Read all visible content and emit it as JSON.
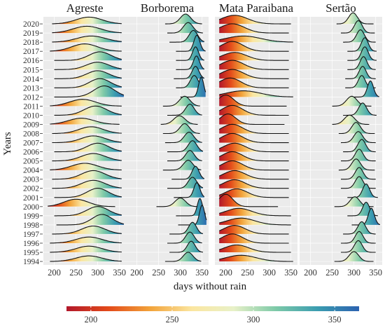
{
  "chart_data": {
    "type": "ridgeline",
    "facets": [
      "Agreste",
      "Borborema",
      "Mata Paraibana",
      "Sertão"
    ],
    "xlabel": "days without rain",
    "ylabel": "Years",
    "xlim": [
      175,
      365
    ],
    "xticks": [
      200,
      250,
      300,
      350
    ],
    "years": [
      2020,
      2019,
      2018,
      2017,
      2016,
      2015,
      2014,
      2013,
      2012,
      2011,
      2010,
      2009,
      2008,
      2007,
      2006,
      2005,
      2004,
      2003,
      2002,
      2001,
      2000,
      1999,
      1998,
      1997,
      1996,
      1995,
      1994
    ],
    "colorbar": {
      "min": 185,
      "max": 365,
      "ticks": [
        200,
        250,
        300,
        350
      ],
      "colors": [
        "#b2182b",
        "#e34a1a",
        "#f2a33a",
        "#fbe6a0",
        "#e8f1c8",
        "#7ecaa8",
        "#3b9db0",
        "#2c62b0"
      ]
    },
    "legend_position": "bottom",
    "grid": true,
    "series": [
      {
        "facet": "Agreste",
        "year": 2020,
        "lo": 195,
        "hi": 355,
        "peak": 280,
        "spread": 30,
        "height": 0.55
      },
      {
        "facet": "Agreste",
        "year": 2019,
        "lo": 195,
        "hi": 355,
        "peak": 275,
        "spread": 32,
        "height": 0.55
      },
      {
        "facet": "Agreste",
        "year": 2018,
        "lo": 195,
        "hi": 355,
        "peak": 285,
        "spread": 33,
        "height": 0.5
      },
      {
        "facet": "Agreste",
        "year": 2017,
        "lo": 190,
        "hi": 355,
        "peak": 270,
        "spread": 30,
        "height": 0.6
      },
      {
        "facet": "Agreste",
        "year": 2016,
        "lo": 200,
        "hi": 355,
        "peak": 305,
        "spread": 25,
        "height": 0.7
      },
      {
        "facet": "Agreste",
        "year": 2015,
        "lo": 200,
        "hi": 355,
        "peak": 300,
        "spread": 26,
        "height": 0.6
      },
      {
        "facet": "Agreste",
        "year": 2014,
        "lo": 200,
        "hi": 355,
        "peak": 300,
        "spread": 25,
        "height": 0.65
      },
      {
        "facet": "Agreste",
        "year": 2013,
        "lo": 200,
        "hi": 355,
        "peak": 305,
        "spread": 24,
        "height": 0.75
      },
      {
        "facet": "Agreste",
        "year": 2012,
        "lo": 200,
        "hi": 360,
        "peak": 315,
        "spread": 24,
        "height": 0.9
      },
      {
        "facet": "Agreste",
        "year": 2011,
        "lo": 190,
        "hi": 355,
        "peak": 265,
        "spread": 30,
        "height": 0.55
      },
      {
        "facet": "Agreste",
        "year": 2010,
        "lo": 200,
        "hi": 355,
        "peak": 295,
        "spread": 26,
        "height": 0.75
      },
      {
        "facet": "Agreste",
        "year": 2009,
        "lo": 190,
        "hi": 350,
        "peak": 262,
        "spread": 30,
        "height": 0.5
      },
      {
        "facet": "Agreste",
        "year": 2008,
        "lo": 195,
        "hi": 355,
        "peak": 285,
        "spread": 28,
        "height": 0.55
      },
      {
        "facet": "Agreste",
        "year": 2007,
        "lo": 195,
        "hi": 355,
        "peak": 290,
        "spread": 28,
        "height": 0.55
      },
      {
        "facet": "Agreste",
        "year": 2006,
        "lo": 200,
        "hi": 355,
        "peak": 300,
        "spread": 25,
        "height": 0.7
      },
      {
        "facet": "Agreste",
        "year": 2005,
        "lo": 195,
        "hi": 355,
        "peak": 290,
        "spread": 28,
        "height": 0.6
      },
      {
        "facet": "Agreste",
        "year": 2004,
        "lo": 190,
        "hi": 355,
        "peak": 270,
        "spread": 30,
        "height": 0.55
      },
      {
        "facet": "Agreste",
        "year": 2003,
        "lo": 195,
        "hi": 355,
        "peak": 290,
        "spread": 27,
        "height": 0.7
      },
      {
        "facet": "Agreste",
        "year": 2002,
        "lo": 195,
        "hi": 355,
        "peak": 290,
        "spread": 27,
        "height": 0.65
      },
      {
        "facet": "Agreste",
        "year": 2001,
        "lo": 200,
        "hi": 355,
        "peak": 300,
        "spread": 24,
        "height": 0.75
      },
      {
        "facet": "Agreste",
        "year": 2000,
        "lo": 185,
        "hi": 340,
        "peak": 250,
        "spread": 28,
        "height": 0.6
      },
      {
        "facet": "Agreste",
        "year": 1999,
        "lo": 200,
        "hi": 355,
        "peak": 300,
        "spread": 25,
        "height": 0.75
      },
      {
        "facet": "Agreste",
        "year": 1998,
        "lo": 205,
        "hi": 360,
        "peak": 310,
        "spread": 23,
        "height": 0.85
      },
      {
        "facet": "Agreste",
        "year": 1997,
        "lo": 195,
        "hi": 355,
        "peak": 290,
        "spread": 27,
        "height": 0.65
      },
      {
        "facet": "Agreste",
        "year": 1996,
        "lo": 190,
        "hi": 355,
        "peak": 280,
        "spread": 30,
        "height": 0.5
      },
      {
        "facet": "Agreste",
        "year": 1995,
        "lo": 190,
        "hi": 355,
        "peak": 280,
        "spread": 30,
        "height": 0.5
      },
      {
        "facet": "Agreste",
        "year": 1994,
        "lo": 190,
        "hi": 355,
        "peak": 280,
        "spread": 30,
        "height": 0.45
      },
      {
        "facet": "Borborema",
        "year": 2020,
        "lo": 265,
        "hi": 350,
        "peak": 312,
        "spread": 12,
        "height": 0.8
      },
      {
        "facet": "Borborema",
        "year": 2019,
        "lo": 270,
        "hi": 352,
        "peak": 318,
        "spread": 11,
        "height": 0.85
      },
      {
        "facet": "Borborema",
        "year": 2018,
        "lo": 275,
        "hi": 355,
        "peak": 330,
        "spread": 10,
        "height": 0.95
      },
      {
        "facet": "Borborema",
        "year": 2017,
        "lo": 290,
        "hi": 358,
        "peak": 338,
        "spread": 7,
        "height": 1.3
      },
      {
        "facet": "Borborema",
        "year": 2016,
        "lo": 290,
        "hi": 355,
        "peak": 335,
        "spread": 7,
        "height": 1.1
      },
      {
        "facet": "Borborema",
        "year": 2015,
        "lo": 290,
        "hi": 355,
        "peak": 337,
        "spread": 7,
        "height": 1.1
      },
      {
        "facet": "Borborema",
        "year": 2014,
        "lo": 285,
        "hi": 355,
        "peak": 335,
        "spread": 8,
        "height": 1.0
      },
      {
        "facet": "Borborema",
        "year": 2013,
        "lo": 290,
        "hi": 355,
        "peak": 332,
        "spread": 9,
        "height": 1.0
      },
      {
        "facet": "Borborema",
        "year": 2012,
        "lo": 300,
        "hi": 358,
        "peak": 348,
        "spread": 6,
        "height": 1.6
      },
      {
        "facet": "Borborema",
        "year": 2011,
        "lo": 260,
        "hi": 345,
        "peak": 310,
        "spread": 12,
        "height": 0.8
      },
      {
        "facet": "Borborema",
        "year": 2010,
        "lo": 270,
        "hi": 350,
        "peak": 322,
        "spread": 10,
        "height": 0.9
      },
      {
        "facet": "Borborema",
        "year": 2009,
        "lo": 255,
        "hi": 340,
        "peak": 298,
        "spread": 13,
        "height": 0.7
      },
      {
        "facet": "Borborema",
        "year": 2008,
        "lo": 260,
        "hi": 345,
        "peak": 310,
        "spread": 11,
        "height": 0.8
      },
      {
        "facet": "Borborema",
        "year": 2007,
        "lo": 265,
        "hi": 350,
        "peak": 320,
        "spread": 11,
        "height": 0.85
      },
      {
        "facet": "Borborema",
        "year": 2006,
        "lo": 270,
        "hi": 352,
        "peak": 328,
        "spread": 10,
        "height": 0.9
      },
      {
        "facet": "Borborema",
        "year": 2005,
        "lo": 270,
        "hi": 350,
        "peak": 322,
        "spread": 10,
        "height": 0.85
      },
      {
        "facet": "Borborema",
        "year": 2004,
        "lo": 260,
        "hi": 348,
        "peak": 318,
        "spread": 11,
        "height": 0.8
      },
      {
        "facet": "Borborema",
        "year": 2003,
        "lo": 280,
        "hi": 355,
        "peak": 335,
        "spread": 8,
        "height": 1.05
      },
      {
        "facet": "Borborema",
        "year": 2002,
        "lo": 270,
        "hi": 352,
        "peak": 328,
        "spread": 10,
        "height": 0.9
      },
      {
        "facet": "Borborema",
        "year": 2001,
        "lo": 285,
        "hi": 355,
        "peak": 338,
        "spread": 7,
        "height": 1.2
      },
      {
        "facet": "Borborema",
        "year": 2000,
        "lo": 245,
        "hi": 340,
        "peak": 300,
        "spread": 12,
        "height": 0.7
      },
      {
        "facet": "Borborema",
        "year": 1999,
        "lo": 290,
        "hi": 358,
        "peak": 345,
        "spread": 6,
        "height": 1.4
      },
      {
        "facet": "Borborema",
        "year": 1998,
        "lo": 295,
        "hi": 360,
        "peak": 350,
        "spread": 6,
        "height": 1.6
      },
      {
        "facet": "Borborema",
        "year": 1997,
        "lo": 275,
        "hi": 352,
        "peak": 328,
        "spread": 9,
        "height": 0.95
      },
      {
        "facet": "Borborema",
        "year": 1996,
        "lo": 270,
        "hi": 350,
        "peak": 322,
        "spread": 10,
        "height": 0.9
      },
      {
        "facet": "Borborema",
        "year": 1995,
        "lo": 275,
        "hi": 352,
        "peak": 325,
        "spread": 9,
        "height": 0.9
      },
      {
        "facet": "Borborema",
        "year": 1994,
        "lo": 265,
        "hi": 348,
        "peak": 318,
        "spread": 11,
        "height": 0.75
      },
      {
        "facet": "Mata Paraibana",
        "year": 2020,
        "lo": 185,
        "hi": 350,
        "peak": 220,
        "spread": 30,
        "height": 0.7
      },
      {
        "facet": "Mata Paraibana",
        "year": 2019,
        "lo": 185,
        "hi": 345,
        "peak": 215,
        "spread": 28,
        "height": 0.75
      },
      {
        "facet": "Mata Paraibana",
        "year": 2018,
        "lo": 185,
        "hi": 355,
        "peak": 240,
        "spread": 40,
        "height": 0.5
      },
      {
        "facet": "Mata Paraibana",
        "year": 2017,
        "lo": 185,
        "hi": 345,
        "peak": 215,
        "spread": 25,
        "height": 0.8
      },
      {
        "facet": "Mata Paraibana",
        "year": 2016,
        "lo": 185,
        "hi": 345,
        "peak": 220,
        "spread": 28,
        "height": 0.65
      },
      {
        "facet": "Mata Paraibana",
        "year": 2015,
        "lo": 185,
        "hi": 345,
        "peak": 215,
        "spread": 26,
        "height": 0.75
      },
      {
        "facet": "Mata Paraibana",
        "year": 2014,
        "lo": 185,
        "hi": 345,
        "peak": 215,
        "spread": 26,
        "height": 0.75
      },
      {
        "facet": "Mata Paraibana",
        "year": 2013,
        "lo": 185,
        "hi": 345,
        "peak": 210,
        "spread": 25,
        "height": 0.8
      },
      {
        "facet": "Mata Paraibana",
        "year": 2012,
        "lo": 185,
        "hi": 355,
        "peak": 240,
        "spread": 40,
        "height": 0.5
      },
      {
        "facet": "Mata Paraibana",
        "year": 2011,
        "lo": 185,
        "hi": 340,
        "peak": 200,
        "spread": 18,
        "height": 0.9
      },
      {
        "facet": "Mata Paraibana",
        "year": 2010,
        "lo": 185,
        "hi": 345,
        "peak": 215,
        "spread": 24,
        "height": 0.8
      },
      {
        "facet": "Mata Paraibana",
        "year": 2009,
        "lo": 185,
        "hi": 335,
        "peak": 205,
        "spread": 18,
        "height": 0.85
      },
      {
        "facet": "Mata Paraibana",
        "year": 2008,
        "lo": 185,
        "hi": 345,
        "peak": 215,
        "spread": 24,
        "height": 0.75
      },
      {
        "facet": "Mata Paraibana",
        "year": 2007,
        "lo": 185,
        "hi": 345,
        "peak": 215,
        "spread": 24,
        "height": 0.75
      },
      {
        "facet": "Mata Paraibana",
        "year": 2006,
        "lo": 185,
        "hi": 345,
        "peak": 220,
        "spread": 25,
        "height": 0.7
      },
      {
        "facet": "Mata Paraibana",
        "year": 2005,
        "lo": 185,
        "hi": 345,
        "peak": 215,
        "spread": 24,
        "height": 0.75
      },
      {
        "facet": "Mata Paraibana",
        "year": 2004,
        "lo": 185,
        "hi": 345,
        "peak": 215,
        "spread": 24,
        "height": 0.75
      },
      {
        "facet": "Mata Paraibana",
        "year": 2003,
        "lo": 185,
        "hi": 345,
        "peak": 220,
        "spread": 25,
        "height": 0.7
      },
      {
        "facet": "Mata Paraibana",
        "year": 2002,
        "lo": 185,
        "hi": 345,
        "peak": 220,
        "spread": 25,
        "height": 0.7
      },
      {
        "facet": "Mata Paraibana",
        "year": 2001,
        "lo": 185,
        "hi": 345,
        "peak": 225,
        "spread": 25,
        "height": 0.7
      },
      {
        "facet": "Mata Paraibana",
        "year": 2000,
        "lo": 185,
        "hi": 320,
        "peak": 200,
        "spread": 16,
        "height": 1.0
      },
      {
        "facet": "Mata Paraibana",
        "year": 1999,
        "lo": 185,
        "hi": 350,
        "peak": 230,
        "spread": 30,
        "height": 0.6
      },
      {
        "facet": "Mata Paraibana",
        "year": 1998,
        "lo": 185,
        "hi": 350,
        "peak": 235,
        "spread": 32,
        "height": 0.55
      },
      {
        "facet": "Mata Paraibana",
        "year": 1997,
        "lo": 185,
        "hi": 345,
        "peak": 220,
        "spread": 25,
        "height": 0.7
      },
      {
        "facet": "Mata Paraibana",
        "year": 1996,
        "lo": 185,
        "hi": 345,
        "peak": 215,
        "spread": 24,
        "height": 0.75
      },
      {
        "facet": "Mata Paraibana",
        "year": 1995,
        "lo": 185,
        "hi": 350,
        "peak": 225,
        "spread": 28,
        "height": 0.6
      },
      {
        "facet": "Mata Paraibana",
        "year": 1994,
        "lo": 185,
        "hi": 355,
        "peak": 235,
        "spread": 35,
        "height": 0.5
      },
      {
        "facet": "Sertão",
        "year": 2020,
        "lo": 260,
        "hi": 345,
        "peak": 298,
        "spread": 10,
        "height": 0.9
      },
      {
        "facet": "Sertão",
        "year": 2019,
        "lo": 270,
        "hi": 348,
        "peak": 310,
        "spread": 9,
        "height": 1.0
      },
      {
        "facet": "Sertão",
        "year": 2018,
        "lo": 275,
        "hi": 350,
        "peak": 315,
        "spread": 9,
        "height": 1.0
      },
      {
        "facet": "Sertão",
        "year": 2017,
        "lo": 285,
        "hi": 352,
        "peak": 325,
        "spread": 8,
        "height": 1.1
      },
      {
        "facet": "Sertão",
        "year": 2016,
        "lo": 285,
        "hi": 352,
        "peak": 325,
        "spread": 8,
        "height": 1.1
      },
      {
        "facet": "Sertão",
        "year": 2015,
        "lo": 285,
        "hi": 350,
        "peak": 322,
        "spread": 8,
        "height": 1.05
      },
      {
        "facet": "Sertão",
        "year": 2014,
        "lo": 280,
        "hi": 350,
        "peak": 320,
        "spread": 8,
        "height": 1.0
      },
      {
        "facet": "Sertão",
        "year": 2013,
        "lo": 280,
        "hi": 350,
        "peak": 318,
        "spread": 8,
        "height": 1.0
      },
      {
        "facet": "Sertão",
        "year": 2012,
        "lo": 300,
        "hi": 358,
        "peak": 338,
        "spread": 7,
        "height": 1.3
      },
      {
        "facet": "Sertão",
        "year": 2011,
        "lo": 250,
        "hi": 340,
        "peak": 295,
        "spread": 12,
        "height": 0.8
      },
      {
        "facet": "Sertão",
        "year": 2010,
        "lo": 275,
        "hi": 352,
        "peak": 320,
        "spread": 9,
        "height": 1.0
      },
      {
        "facet": "Sertão",
        "year": 2009,
        "lo": 250,
        "hi": 335,
        "peak": 290,
        "spread": 12,
        "height": 0.75
      },
      {
        "facet": "Sertão",
        "year": 2008,
        "lo": 265,
        "hi": 348,
        "peak": 305,
        "spread": 10,
        "height": 0.9
      },
      {
        "facet": "Sertão",
        "year": 2007,
        "lo": 270,
        "hi": 350,
        "peak": 310,
        "spread": 10,
        "height": 0.9
      },
      {
        "facet": "Sertão",
        "year": 2006,
        "lo": 275,
        "hi": 350,
        "peak": 318,
        "spread": 9,
        "height": 1.0
      },
      {
        "facet": "Sertão",
        "year": 2005,
        "lo": 270,
        "hi": 350,
        "peak": 312,
        "spread": 9,
        "height": 0.95
      },
      {
        "facet": "Sertão",
        "year": 2004,
        "lo": 265,
        "hi": 348,
        "peak": 305,
        "spread": 10,
        "height": 0.9
      },
      {
        "facet": "Sertão",
        "year": 2003,
        "lo": 270,
        "hi": 350,
        "peak": 312,
        "spread": 9,
        "height": 0.95
      },
      {
        "facet": "Sertão",
        "year": 2002,
        "lo": 270,
        "hi": 350,
        "peak": 312,
        "spread": 9,
        "height": 0.95
      },
      {
        "facet": "Sertão",
        "year": 2001,
        "lo": 285,
        "hi": 355,
        "peak": 328,
        "spread": 8,
        "height": 1.1
      },
      {
        "facet": "Sertão",
        "year": 2000,
        "lo": 255,
        "hi": 345,
        "peak": 302,
        "spread": 11,
        "height": 0.8
      },
      {
        "facet": "Sertão",
        "year": 1999,
        "lo": 285,
        "hi": 355,
        "peak": 328,
        "spread": 8,
        "height": 1.1
      },
      {
        "facet": "Sertão",
        "year": 1998,
        "lo": 295,
        "hi": 360,
        "peak": 340,
        "spread": 7,
        "height": 1.35
      },
      {
        "facet": "Sertão",
        "year": 1997,
        "lo": 275,
        "hi": 350,
        "peak": 318,
        "spread": 9,
        "height": 1.0
      },
      {
        "facet": "Sertão",
        "year": 1996,
        "lo": 270,
        "hi": 350,
        "peak": 312,
        "spread": 9,
        "height": 0.95
      },
      {
        "facet": "Sertão",
        "year": 1995,
        "lo": 270,
        "hi": 350,
        "peak": 310,
        "spread": 9,
        "height": 0.95
      },
      {
        "facet": "Sertão",
        "year": 1994,
        "lo": 255,
        "hi": 345,
        "peak": 300,
        "spread": 11,
        "height": 0.8
      }
    ]
  }
}
